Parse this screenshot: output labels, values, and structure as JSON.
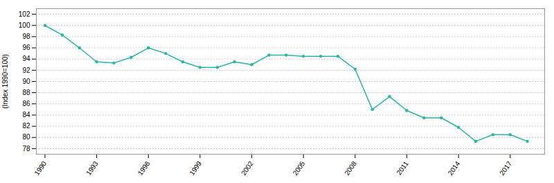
{
  "chart_data": {
    "type": "line",
    "x": [
      1990,
      1991,
      1992,
      1993,
      1994,
      1995,
      1996,
      1997,
      1998,
      1999,
      2000,
      2001,
      2002,
      2003,
      2004,
      2005,
      2006,
      2007,
      2008,
      2009,
      2010,
      2011,
      2012,
      2013,
      2014,
      2015,
      2016,
      2017,
      2018
    ],
    "values": [
      100.0,
      98.3,
      96.0,
      93.5,
      93.3,
      94.3,
      96.0,
      95.0,
      93.5,
      92.5,
      92.5,
      93.5,
      93.0,
      94.7,
      94.7,
      94.5,
      94.5,
      94.5,
      92.2,
      85.0,
      87.3,
      84.8,
      83.5,
      83.5,
      81.8,
      79.3,
      80.5,
      80.5,
      79.3
    ],
    "color": "#2ab5ac",
    "marker": "circle",
    "ylabel": "(Index 1990=100)",
    "xlim": [
      1989.5,
      2019.0
    ],
    "xticks": [
      1990,
      1993,
      1996,
      1999,
      2002,
      2005,
      2008,
      2011,
      2014,
      2017
    ],
    "ylim": [
      77,
      103
    ],
    "yticks": [
      78,
      80,
      82,
      84,
      86,
      88,
      90,
      92,
      94,
      96,
      98,
      100,
      102
    ],
    "grid": true
  }
}
